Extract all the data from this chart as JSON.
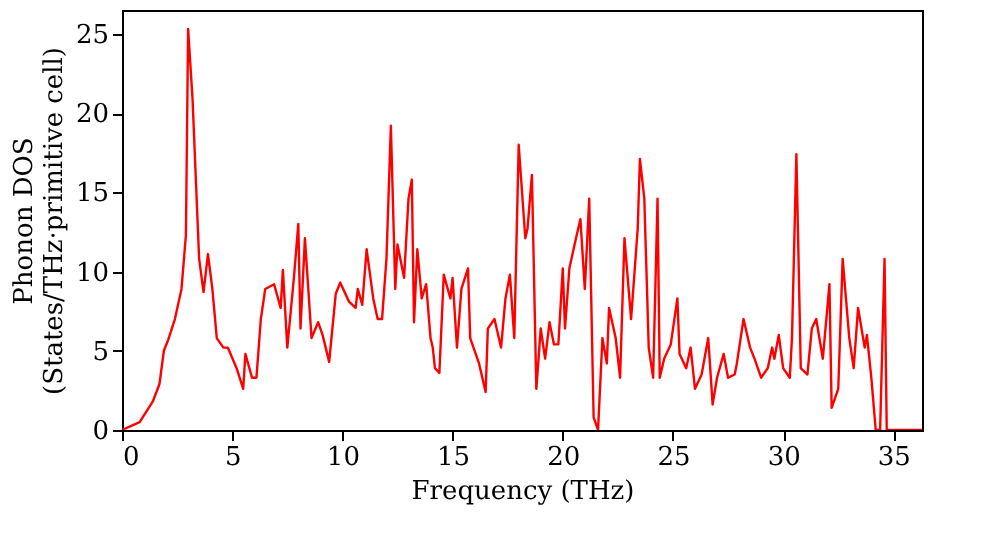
{
  "chart_data": {
    "type": "line",
    "xlabel": "Frequency (THz)",
    "ylabel": "Phonon DOS\n(States/THz·primitive cell)",
    "xlim": [
      0,
      36.3
    ],
    "ylim": [
      0,
      26.5
    ],
    "xticks": [
      0,
      5,
      10,
      15,
      20,
      25,
      30,
      35
    ],
    "yticks": [
      0,
      5,
      10,
      15,
      20,
      25
    ],
    "grid": false,
    "legend": false,
    "series": [
      {
        "color": "#ff0000",
        "x": [
          0,
          0.8,
          1.4,
          1.7,
          1.9,
          2.1,
          2.4,
          2.7,
          2.9,
          3.0,
          3.2,
          3.5,
          3.7,
          3.9,
          4.1,
          4.3,
          4.6,
          4.8,
          5.2,
          5.5,
          5.6,
          5.9,
          6.1,
          6.3,
          6.5,
          6.9,
          7.2,
          7.3,
          7.5,
          7.8,
          8.0,
          8.1,
          8.3,
          8.6,
          8.9,
          9.1,
          9.4,
          9.7,
          9.9,
          10.3,
          10.6,
          10.7,
          10.9,
          11.1,
          11.4,
          11.6,
          11.8,
          12.0,
          12.2,
          12.4,
          12.5,
          12.8,
          13.0,
          13.15,
          13.25,
          13.4,
          13.6,
          13.8,
          14.0,
          14.1,
          14.2,
          14.4,
          14.6,
          14.9,
          15.0,
          15.2,
          15.4,
          15.7,
          15.8,
          16.2,
          16.5,
          16.6,
          16.9,
          17.2,
          17.4,
          17.6,
          17.8,
          18.0,
          18.3,
          18.4,
          18.6,
          18.8,
          19.0,
          19.2,
          19.4,
          19.6,
          19.8,
          20.0,
          20.1,
          20.3,
          20.6,
          20.8,
          21.0,
          21.2,
          21.4,
          21.6,
          21.8,
          22.0,
          22.1,
          22.4,
          22.6,
          22.8,
          23.1,
          23.4,
          23.5,
          23.7,
          23.9,
          24.1,
          24.3,
          24.4,
          24.6,
          24.9,
          25.2,
          25.3,
          25.6,
          25.8,
          26.0,
          26.3,
          26.6,
          26.8,
          27.0,
          27.3,
          27.5,
          27.8,
          27.9,
          28.2,
          28.5,
          28.7,
          29.0,
          29.3,
          29.5,
          29.6,
          29.8,
          30.0,
          30.3,
          30.4,
          30.6,
          30.8,
          31.1,
          31.3,
          31.5,
          31.8,
          32.1,
          32.2,
          32.5,
          32.7,
          33.0,
          33.2,
          33.4,
          33.7,
          33.8,
          34.0,
          34.2,
          34.4,
          34.6,
          34.7,
          36.3
        ],
        "values": [
          0,
          0.5,
          1.8,
          2.9,
          5.0,
          5.7,
          7.0,
          8.9,
          12.3,
          25.3,
          20.9,
          10.8,
          8.7,
          11.1,
          8.9,
          5.8,
          5.2,
          5.2,
          3.9,
          2.6,
          4.8,
          3.3,
          3.3,
          7.0,
          8.9,
          9.2,
          7.7,
          10.1,
          5.2,
          9.6,
          13.0,
          6.4,
          12.1,
          5.8,
          6.8,
          6.0,
          4.3,
          8.6,
          9.3,
          8.1,
          7.7,
          8.9,
          7.9,
          11.4,
          8.3,
          7.0,
          7.0,
          10.8,
          19.2,
          8.9,
          11.7,
          9.6,
          14.6,
          15.8,
          6.8,
          11.4,
          8.3,
          9.2,
          5.8,
          5.2,
          3.9,
          3.6,
          9.8,
          8.3,
          9.6,
          5.2,
          8.9,
          10.2,
          5.8,
          4.2,
          2.4,
          6.4,
          7.0,
          5.2,
          8.3,
          9.8,
          5.8,
          18.0,
          12.1,
          12.7,
          16.1,
          2.6,
          6.4,
          4.5,
          6.8,
          5.4,
          5.4,
          10.2,
          6.4,
          10.2,
          12.1,
          13.3,
          8.9,
          14.6,
          0.8,
          0,
          5.8,
          4.2,
          7.7,
          5.8,
          3.3,
          12.1,
          7.0,
          12.7,
          17.1,
          14.6,
          5.2,
          3.3,
          14.6,
          3.3,
          4.5,
          5.4,
          8.3,
          4.8,
          3.9,
          5.2,
          2.6,
          3.5,
          5.8,
          1.6,
          3.3,
          4.8,
          3.3,
          3.5,
          4.2,
          7.0,
          5.2,
          4.5,
          3.3,
          3.9,
          5.2,
          4.5,
          6.0,
          3.9,
          3.3,
          5.8,
          17.4,
          3.9,
          3.5,
          6.4,
          7.0,
          4.5,
          9.2,
          1.4,
          2.6,
          10.8,
          5.8,
          3.9,
          7.7,
          5.2,
          6.0,
          3.3,
          0,
          0,
          10.8,
          0,
          0
        ]
      }
    ]
  }
}
